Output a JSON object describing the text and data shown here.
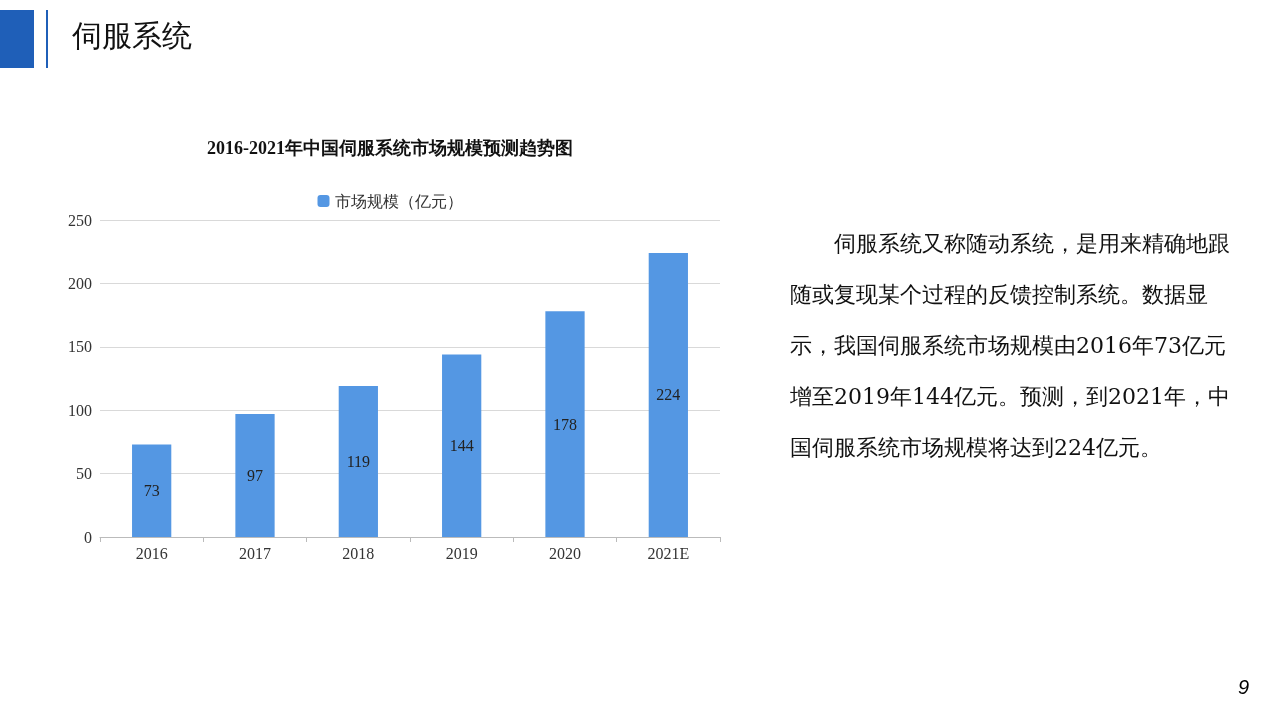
{
  "chart_data": {
    "type": "bar",
    "title": "2016-2021年中国伺服系统市场规模预测趋势图",
    "categories": [
      "2016",
      "2017",
      "2018",
      "2019",
      "2020",
      "2021E"
    ],
    "series": [
      {
        "name": "市场规模（亿元）",
        "color": "#5497e3",
        "values": [
          73,
          97,
          119,
          144,
          178,
          224
        ]
      }
    ],
    "ylim": [
      0,
      250
    ],
    "yticks": [
      0,
      50,
      100,
      150,
      200,
      250
    ],
    "grid": "y",
    "legend": "top",
    "data_labels": true,
    "annotations": [
      "伺服系统",
      "伺服系统又称随动系统，是用来精确地跟随或复现某个过程的反馈控制系统。数据显示，我国伺服系统市场规模由2016年73亿元增至2019年144亿元。预测，到2021年，中国伺服系统市场规模将达到224亿元。",
      "9"
    ]
  }
}
